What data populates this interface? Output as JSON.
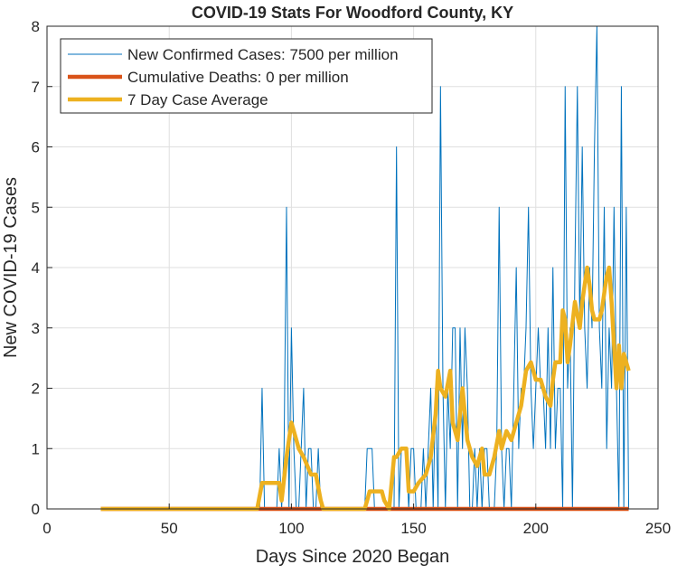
{
  "chart_data": {
    "type": "line",
    "title": "COVID-19 Stats For Woodford County, KY",
    "x_label": "Days Since 2020 Began",
    "y_label": "New COVID-19 Cases",
    "xlim": [
      0,
      250
    ],
    "xticks": [
      0,
      50,
      100,
      150,
      200,
      250
    ],
    "ylim": [
      0,
      8
    ],
    "yticks": [
      0,
      1,
      2,
      3,
      4,
      5,
      6,
      7,
      8
    ],
    "grid": true,
    "legend": "upper left",
    "series": [
      {
        "name": "New Confirmed Cases: 7500 per million",
        "color": "#0072BD",
        "width": 1,
        "x": [
          22,
          86,
          87,
          88,
          89,
          90,
          91,
          92,
          93,
          94,
          95,
          96,
          97,
          98,
          99,
          100,
          101,
          102,
          103,
          104,
          105,
          106,
          107,
          108,
          109,
          110,
          111,
          112,
          113,
          114,
          115,
          116,
          117,
          118,
          119,
          120,
          121,
          122,
          123,
          124,
          125,
          126,
          127,
          128,
          129,
          130,
          131,
          132,
          133,
          134,
          135,
          136,
          137,
          138,
          139,
          140,
          141,
          142,
          143,
          144,
          145,
          146,
          147,
          148,
          149,
          150,
          151,
          152,
          153,
          154,
          155,
          156,
          157,
          158,
          159,
          160,
          161,
          162,
          163,
          164,
          165,
          166,
          167,
          168,
          169,
          170,
          171,
          172,
          173,
          174,
          175,
          176,
          177,
          178,
          179,
          180,
          181,
          182,
          183,
          184,
          185,
          186,
          187,
          188,
          189,
          190,
          191,
          192,
          193,
          194,
          195,
          196,
          197,
          198,
          199,
          200,
          201,
          202,
          203,
          204,
          205,
          206,
          207,
          208,
          209,
          210,
          211,
          212,
          213,
          214,
          215,
          216,
          217,
          218,
          219,
          220,
          221,
          222,
          223,
          224,
          225,
          226,
          227,
          228,
          229,
          230,
          231,
          232,
          233,
          234,
          235,
          236,
          237,
          238
        ],
        "values": [
          0,
          0,
          0,
          2,
          0,
          0,
          0,
          0,
          0,
          0,
          1,
          0,
          1,
          5,
          0,
          3,
          1,
          0,
          0,
          1,
          2,
          0,
          1,
          1,
          0,
          0,
          1,
          0,
          0,
          0,
          0,
          0,
          0,
          0,
          0,
          0,
          0,
          0,
          0,
          0,
          0,
          0,
          0,
          0,
          0,
          0,
          1,
          1,
          1,
          0,
          0,
          0,
          0,
          0,
          0,
          0,
          0,
          0,
          6,
          0,
          1,
          1,
          1,
          0,
          1,
          1,
          0,
          0,
          0,
          1,
          0,
          1,
          2,
          0,
          2,
          0,
          7,
          2,
          0,
          2,
          1,
          3,
          3,
          0,
          3,
          1,
          3,
          2,
          0,
          0,
          1,
          0,
          1,
          0,
          1,
          1,
          0,
          0,
          0,
          1,
          5,
          1,
          0,
          1,
          1,
          0,
          2,
          4,
          1,
          2,
          2,
          3,
          5,
          2,
          1,
          2,
          3,
          2,
          2,
          1,
          3,
          1,
          4,
          1,
          2,
          2,
          0,
          7,
          2,
          3,
          0,
          4,
          7,
          3,
          6,
          3,
          2,
          4,
          3,
          6,
          8,
          3,
          2,
          5,
          1,
          3,
          2,
          5,
          2,
          0,
          7,
          0,
          5,
          0
        ]
      },
      {
        "name": "Cumulative Deaths: 0 per million",
        "color": "#D95319",
        "width": 4.5,
        "x": [
          22,
          238
        ],
        "values": [
          0,
          0
        ]
      },
      {
        "name": "7 Day Case Average",
        "color": "#EDB120",
        "width": 4.5,
        "x": [
          22,
          86,
          88,
          95,
          96,
          98,
          100,
          101,
          103,
          105,
          108,
          110,
          112,
          113,
          130,
          131,
          132,
          137,
          138,
          140,
          142,
          143,
          145,
          147,
          148,
          150,
          152,
          155,
          157,
          159,
          160,
          161,
          163,
          165,
          166,
          168,
          170,
          172,
          174,
          176,
          178,
          179,
          181,
          183,
          185,
          186,
          188,
          190,
          192,
          194,
          196,
          198,
          200,
          202,
          204,
          206,
          207,
          208,
          210,
          211,
          212,
          213,
          214,
          216,
          218,
          219,
          221,
          222,
          223,
          224,
          226,
          227,
          229,
          230,
          231,
          233,
          234,
          235,
          236,
          238
        ],
        "values": [
          0,
          0,
          0.43,
          0.43,
          0.14,
          0.86,
          1.43,
          1.29,
          1.0,
          0.86,
          0.57,
          0.57,
          0.14,
          0,
          0,
          0.14,
          0.29,
          0.29,
          0.14,
          0,
          0.86,
          0.86,
          1.0,
          1.0,
          0.29,
          0.29,
          0.43,
          0.57,
          0.86,
          1.57,
          2.29,
          2.0,
          1.86,
          2.29,
          1.43,
          1.14,
          2.0,
          1.14,
          0.86,
          0.71,
          1.0,
          0.57,
          0.57,
          0.86,
          1.29,
          1.0,
          1.29,
          1.14,
          1.43,
          1.71,
          2.29,
          2.43,
          2.14,
          2.14,
          1.86,
          1.71,
          2.14,
          2.43,
          2.43,
          3.29,
          3.14,
          2.43,
          2.71,
          3.43,
          3.0,
          3.43,
          4.0,
          3.71,
          3.29,
          3.14,
          3.14,
          3.29,
          3.86,
          4.0,
          3.43,
          2.0,
          2.71,
          2.0,
          2.57,
          2.29
        ]
      }
    ]
  }
}
